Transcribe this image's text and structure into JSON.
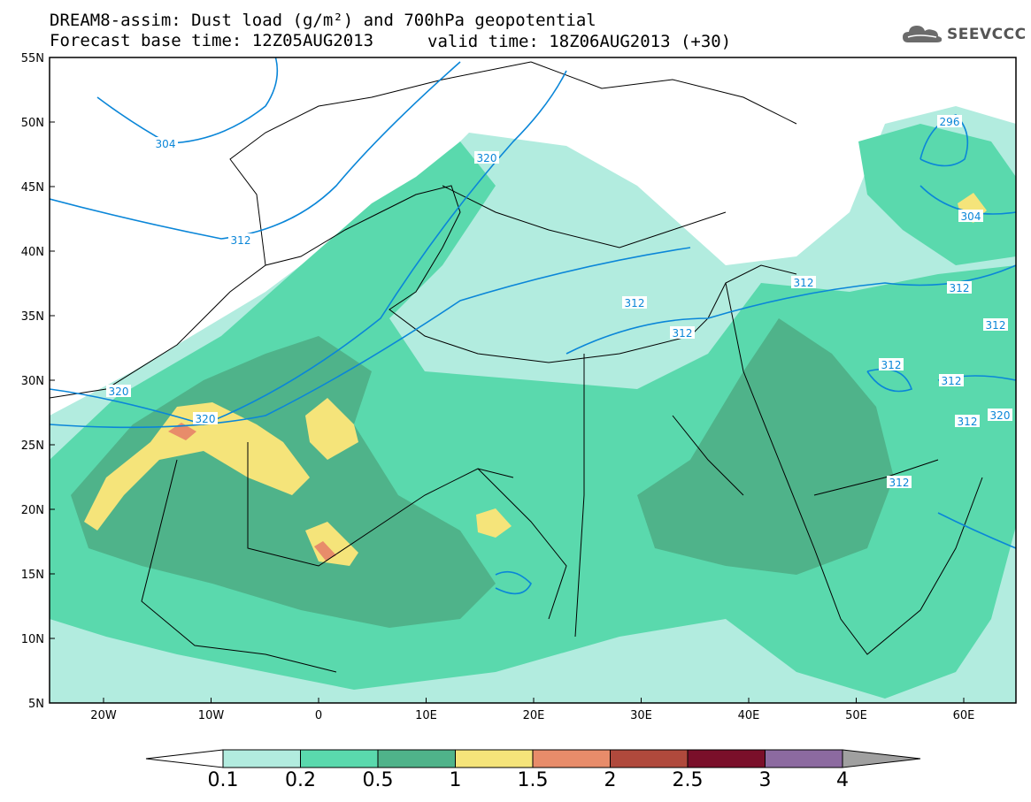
{
  "header": {
    "title_line1": "DREAM8-assim: Dust load (g/m²) and 700hPa geopotential",
    "title_line2": "Forecast base time: 12Z05AUG2013",
    "valid_time": "valid time: 18Z06AUG2013 (+30)",
    "logo_text": "SEEVCCC"
  },
  "map": {
    "lat_ticks": [
      "55N",
      "50N",
      "45N",
      "40N",
      "35N",
      "30N",
      "25N",
      "20N",
      "15N",
      "10N",
      "5N"
    ],
    "lon_ticks": [
      "20W",
      "10W",
      "0",
      "10E",
      "20E",
      "30E",
      "40E",
      "50E",
      "60E"
    ],
    "contour_labels": [
      "304",
      "312",
      "320",
      "320",
      "320",
      "296",
      "304",
      "312",
      "312",
      "312",
      "312",
      "312",
      "312",
      "312",
      "312",
      "320",
      "312"
    ],
    "colors": {
      "dust_0_1": "#b2ecdf",
      "dust_0_2": "#5ad9ad",
      "dust_0_5": "#4fb38a",
      "dust_1": "#f5e47a",
      "dust_1_5": "#e88c6a",
      "contour": "#0a86d8",
      "border": "#000000"
    }
  },
  "colorbar": {
    "labels": [
      "0.1",
      "0.2",
      "0.5",
      "1",
      "1.5",
      "2",
      "2.5",
      "3",
      "4"
    ],
    "colors": [
      "#ffffff",
      "#b2ecdf",
      "#5ad9ad",
      "#4fb38a",
      "#f5e47a",
      "#e88c6a",
      "#b0493c",
      "#7a0f2a",
      "#8c6aa0",
      "#a0a0a0"
    ]
  }
}
